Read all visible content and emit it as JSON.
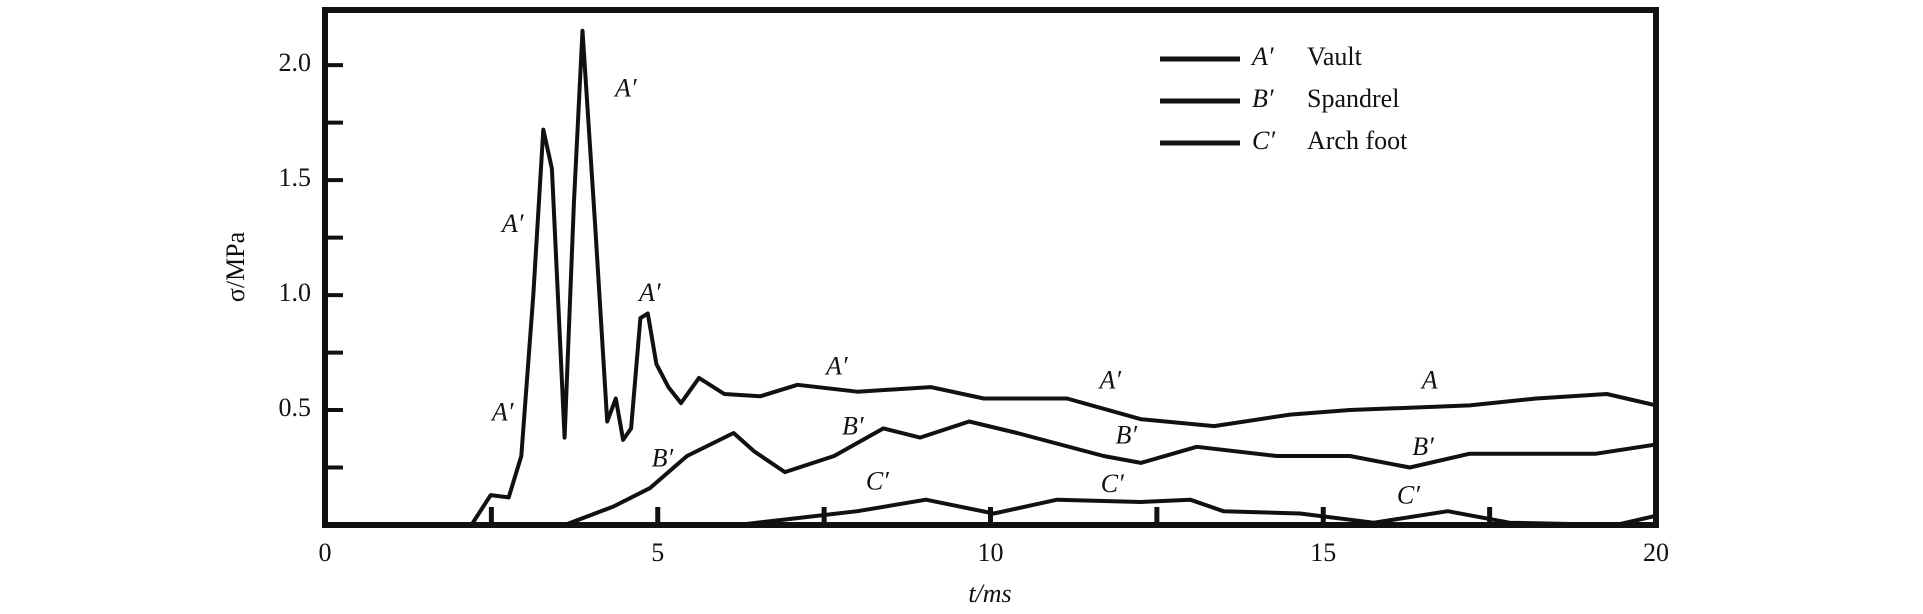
{
  "chart_data": {
    "type": "line",
    "xlabel": "t/ms",
    "ylabel": "σ/MPa",
    "xlim": [
      0,
      20
    ],
    "ylim": [
      0,
      2.24
    ],
    "xticks": [
      0,
      5,
      10,
      15,
      20
    ],
    "xminor": [
      2.5,
      5,
      7.5,
      10,
      12.5,
      15,
      17.5
    ],
    "yticks": [
      0.5,
      {
        "value": 1,
        "label": "1.0"
      },
      1.5,
      {
        "value": 2,
        "label": "2.0"
      }
    ],
    "yminor": [
      0.25,
      0.5,
      0.75,
      1,
      1.25,
      1.5,
      1.75,
      2
    ],
    "legend": "upper right",
    "series": [
      {
        "name": "Vault",
        "key": "A′",
        "color": "#111111",
        "x": [
          0,
          2.2,
          2.49,
          2.76,
          2.95,
          3.13,
          3.28,
          3.41,
          3.6,
          3.74,
          3.87,
          4.06,
          4.24,
          4.37,
          4.48,
          4.6,
          4.74,
          4.85,
          4.98,
          5.16,
          5.35,
          5.62,
          6.0,
          6.54,
          7.1,
          8.0,
          9.1,
          9.9,
          11.15,
          12.26,
          13.36,
          14.5,
          15.4,
          17.2,
          18.2,
          19.26,
          20
        ],
        "values": [
          0,
          0,
          0.13,
          0.12,
          0.3,
          1.0,
          1.72,
          1.55,
          0.38,
          1.4,
          2.15,
          1.3,
          0.45,
          0.55,
          0.37,
          0.42,
          0.9,
          0.92,
          0.7,
          0.6,
          0.53,
          0.64,
          0.57,
          0.56,
          0.61,
          0.58,
          0.6,
          0.55,
          0.55,
          0.46,
          0.43,
          0.48,
          0.5,
          0.52,
          0.55,
          0.57,
          0.52
        ]
      },
      {
        "name": "Spandrel",
        "key": "B′",
        "color": "#111111",
        "x": [
          0,
          3.6,
          4.33,
          4.88,
          5.44,
          6.14,
          6.45,
          6.91,
          7.65,
          8.39,
          8.94,
          9.68,
          10.4,
          11.7,
          12.26,
          13.1,
          14.3,
          15.4,
          16.3,
          17.2,
          19.1,
          20
        ],
        "values": [
          0,
          0,
          0.08,
          0.16,
          0.3,
          0.4,
          0.32,
          0.23,
          0.3,
          0.42,
          0.38,
          0.45,
          0.4,
          0.3,
          0.27,
          0.34,
          0.3,
          0.3,
          0.25,
          0.31,
          0.31,
          0.35
        ]
      },
      {
        "name": "Arch foot",
        "key": "C′",
        "color": "#111111",
        "x": [
          0,
          6.2,
          8.0,
          9.03,
          10.05,
          11.0,
          12.26,
          13.0,
          13.5,
          14.65,
          15.76,
          16.87,
          17.8,
          19.4,
          20
        ],
        "values": [
          0,
          0,
          0.06,
          0.11,
          0.05,
          0.11,
          0.1,
          0.11,
          0.06,
          0.05,
          0.01,
          0.06,
          0.01,
          0,
          0.04
        ]
      }
    ],
    "annotations": [
      {
        "text": "A′",
        "x": 4.52,
        "y": 1.89
      },
      {
        "text": "A′",
        "x": 2.82,
        "y": 1.3
      },
      {
        "text": "A′",
        "x": 4.88,
        "y": 1.0
      },
      {
        "text": "A′",
        "x": 2.67,
        "y": 0.48
      },
      {
        "text": "A′",
        "x": 7.69,
        "y": 0.68
      },
      {
        "text": "A′",
        "x": 11.8,
        "y": 0.62
      },
      {
        "text": "A",
        "x": 16.6,
        "y": 0.62
      },
      {
        "text": "B′",
        "x": 5.07,
        "y": 0.28
      },
      {
        "text": "B′",
        "x": 7.93,
        "y": 0.42
      },
      {
        "text": "B′",
        "x": 12.04,
        "y": 0.38
      },
      {
        "text": "B′",
        "x": 16.5,
        "y": 0.33
      },
      {
        "text": "C′",
        "x": 8.3,
        "y": 0.18
      },
      {
        "text": "C′",
        "x": 11.83,
        "y": 0.17
      },
      {
        "text": "C′",
        "x": 16.28,
        "y": 0.12
      }
    ]
  }
}
